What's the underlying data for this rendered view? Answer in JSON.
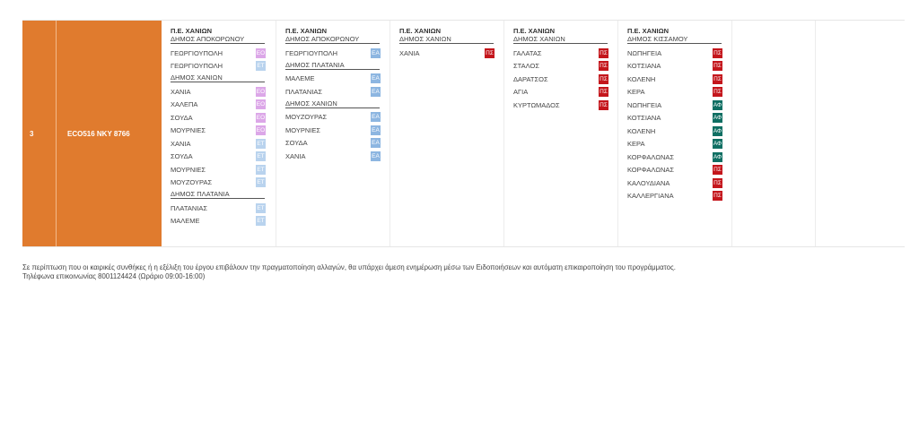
{
  "row": {
    "number": "3",
    "code": "ECO516 NKY 8766"
  },
  "columns": [
    {
      "pe": "Π.Ε. ΧΑΝΙΩΝ",
      "groups": [
        {
          "district": "ΔΗΜΟΣ ΑΠΟΚΟΡΩΝΟΥ",
          "items": [
            {
              "place": "ΓΕΩΡΓΙΟΥΠΟΛΗ",
              "tag": "ΕΟ",
              "color": "eo"
            },
            {
              "place": "ΓΕΩΡΓΙΟΥΠΟΛΗ",
              "tag": "ΕΤ",
              "color": "et"
            }
          ]
        },
        {
          "district": "ΔΗΜΟΣ ΧΑΝΙΩΝ",
          "items": [
            {
              "place": "ΧΑΝΙΑ",
              "tag": "ΕΟ",
              "color": "eo"
            },
            {
              "place": "ΧΑΛΕΠΑ",
              "tag": "ΕΟ",
              "color": "eo"
            },
            {
              "place": "ΣΟΥΔΑ",
              "tag": "ΕΟ",
              "color": "eo"
            },
            {
              "place": "ΜΟΥΡΝΙΕΣ",
              "tag": "ΕΟ",
              "color": "eo"
            },
            {
              "place": "ΧΑΝΙΑ",
              "tag": "ΕΤ",
              "color": "et"
            },
            {
              "place": "ΣΟΥΔΑ",
              "tag": "ΕΤ",
              "color": "et"
            },
            {
              "place": "ΜΟΥΡΝΙΕΣ",
              "tag": "ΕΤ",
              "color": "et"
            },
            {
              "place": "ΜΟΥΖΟΥΡΑΣ",
              "tag": "ΕΤ",
              "color": "et"
            }
          ]
        },
        {
          "district": "ΔΗΜΟΣ ΠΛΑΤΑΝΙΑ",
          "items": [
            {
              "place": "ΠΛΑΤΑΝΙΑΣ",
              "tag": "ΕΤ",
              "color": "et"
            },
            {
              "place": "ΜΑΛΕΜΕ",
              "tag": "ΕΤ",
              "color": "et"
            }
          ]
        }
      ]
    },
    {
      "pe": "Π.Ε. ΧΑΝΙΩΝ",
      "groups": [
        {
          "district": "ΔΗΜΟΣ ΑΠΟΚΟΡΩΝΟΥ",
          "items": [
            {
              "place": "ΓΕΩΡΓΙΟΥΠΟΛΗ",
              "tag": "ΕΑ",
              "color": "ea"
            }
          ]
        },
        {
          "district": "ΔΗΜΟΣ ΠΛΑΤΑΝΙΑ",
          "items": [
            {
              "place": "ΜΑΛΕΜΕ",
              "tag": "ΕΑ",
              "color": "ea"
            },
            {
              "place": "ΠΛΑΤΑΝΙΑΣ",
              "tag": "ΕΑ",
              "color": "ea"
            }
          ]
        },
        {
          "district": "ΔΗΜΟΣ ΧΑΝΙΩΝ",
          "items": [
            {
              "place": "ΜΟΥΖΟΥΡΑΣ",
              "tag": "ΕΑ",
              "color": "ea"
            },
            {
              "place": "ΜΟΥΡΝΙΕΣ",
              "tag": "ΕΑ",
              "color": "ea"
            },
            {
              "place": "ΣΟΥΔΑ",
              "tag": "ΕΑ",
              "color": "ea"
            },
            {
              "place": "ΧΑΝΙΑ",
              "tag": "ΕΑ",
              "color": "ea"
            }
          ]
        }
      ]
    },
    {
      "pe": "Π.Ε. ΧΑΝΙΩΝ",
      "groups": [
        {
          "district": "ΔΗΜΟΣ ΧΑΝΙΩΝ",
          "items": [
            {
              "place": "ΧΑΝΙΑ",
              "tag": "ΠΣ",
              "color": "ps"
            }
          ]
        }
      ]
    },
    {
      "pe": "Π.Ε. ΧΑΝΙΩΝ",
      "groups": [
        {
          "district": "ΔΗΜΟΣ ΧΑΝΙΩΝ",
          "items": [
            {
              "place": "ΓΑΛΑΤΑΣ",
              "tag": "ΠΣ",
              "color": "ps"
            },
            {
              "place": "ΣΤΑΛΟΣ",
              "tag": "ΠΣ",
              "color": "ps"
            },
            {
              "place": "ΔΑΡΑΤΣΟΣ",
              "tag": "ΠΣ",
              "color": "ps"
            },
            {
              "place": "ΑΓΙΑ",
              "tag": "ΠΣ",
              "color": "ps"
            },
            {
              "place": "ΚΥΡΤΩΜΑΔΟΣ",
              "tag": "ΠΣ",
              "color": "ps"
            }
          ]
        }
      ]
    },
    {
      "pe": "Π.Ε. ΧΑΝΙΩΝ",
      "groups": [
        {
          "district": "ΔΗΜΟΣ ΚΙΣΣΑΜΟΥ",
          "items": [
            {
              "place": "ΝΩΠΗΓΕΙΑ",
              "tag": "ΠΣ",
              "color": "ps"
            },
            {
              "place": "ΚΟΤΣΙΑΝΑ",
              "tag": "ΠΣ",
              "color": "ps"
            },
            {
              "place": "ΚΟΛΕΝΗ",
              "tag": "ΠΣ",
              "color": "ps"
            },
            {
              "place": "ΚΕΡΑ",
              "tag": "ΠΣ",
              "color": "ps"
            },
            {
              "place": "ΝΩΠΗΓΕΙΑ",
              "tag": "ΑΦ",
              "color": "af"
            },
            {
              "place": "ΚΟΤΣΙΑΝΑ",
              "tag": "ΑΦ",
              "color": "af"
            },
            {
              "place": "ΚΟΛΕΝΗ",
              "tag": "ΑΦ",
              "color": "af"
            },
            {
              "place": "ΚΕΡΑ",
              "tag": "ΑΦ",
              "color": "af"
            },
            {
              "place": "ΚΟΡΦΑΛΩΝΑΣ",
              "tag": "ΑΦ",
              "color": "af"
            },
            {
              "place": "ΚΟΡΦΑΛΩΝΑΣ",
              "tag": "ΠΣ",
              "color": "ps"
            },
            {
              "place": "ΚΑΛΟΥΔΙΑΝΑ",
              "tag": "ΠΣ",
              "color": "ps"
            },
            {
              "place": "ΚΑΛΛΕΡΓΙΑΝΑ",
              "tag": "ΠΣ",
              "color": "ps"
            }
          ]
        }
      ]
    }
  ],
  "colors": {
    "row_bg": "#e07b2e",
    "eo": "#dca7e8",
    "et": "#b9d3ee",
    "ea": "#8db6e1",
    "ps": "#c4161c",
    "af": "#0f6f63"
  },
  "footer": {
    "line1": "Σε περίπτωση που οι καιρικές συνθήκες ή η εξέλιξη του έργου επιβάλουν την πραγματοποίηση αλλαγών, θα υπάρχει άμεση ενημέρωση μέσω των Ειδοποιήσεων και αυτόματη επικαιροποίηση του προγράμματος.",
    "line2": "Τηλέφωνα επικοινωνίας 8001124424 (Ωράριο 09:00-16:00)"
  }
}
